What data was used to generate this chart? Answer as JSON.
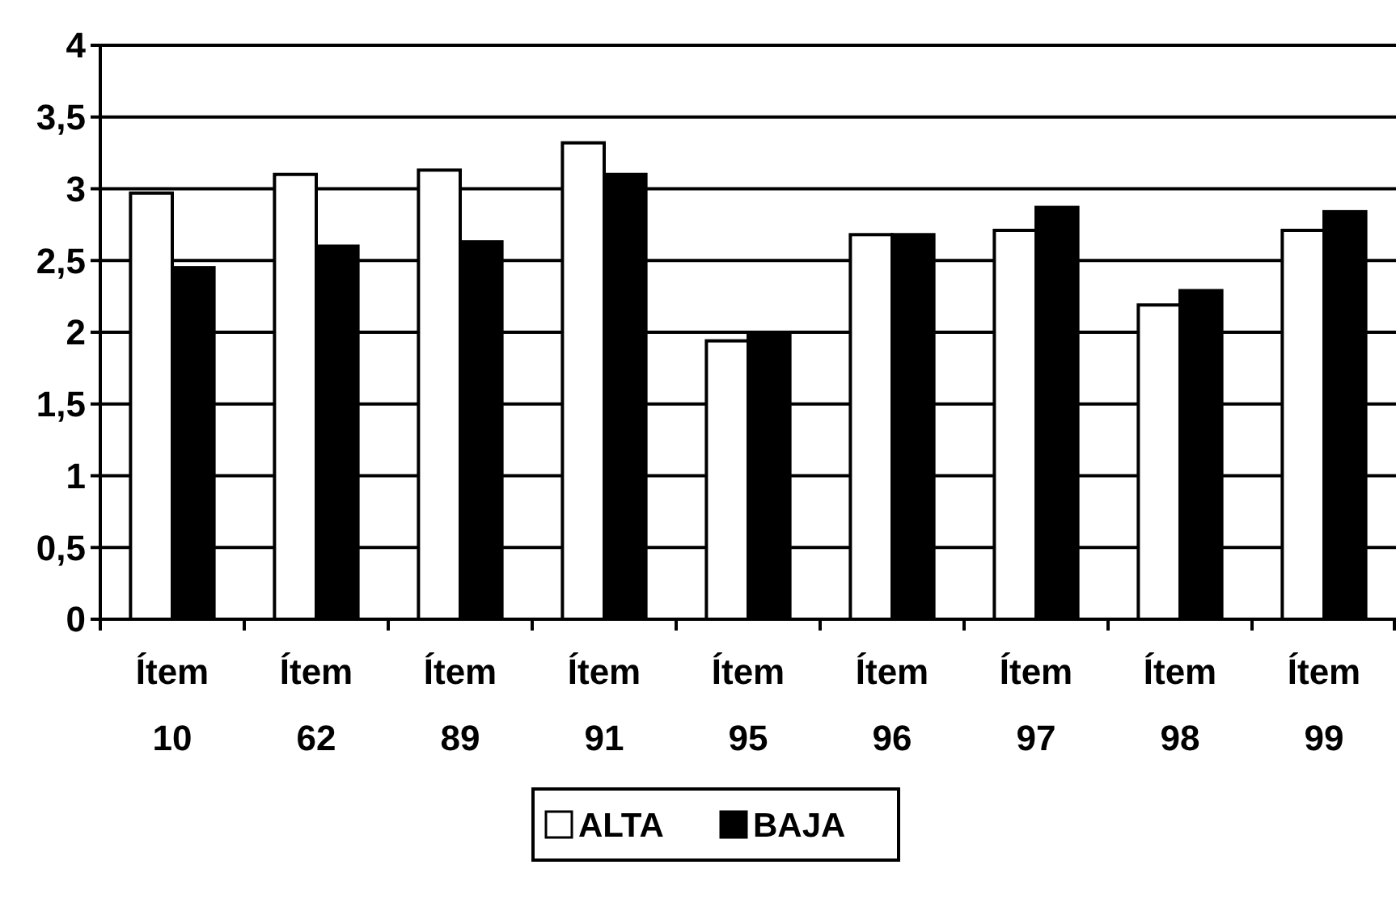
{
  "chart_data": {
    "type": "bar",
    "categories": [
      "Ítem 10",
      "Ítem 62",
      "Ítem 89",
      "Ítem 91",
      "Ítem 95",
      "Ítem 96",
      "Ítem 97",
      "Ítem 98",
      "Ítem 99"
    ],
    "series": [
      {
        "name": "ALTA",
        "color": "#ffffff",
        "values": [
          2.97,
          3.1,
          3.13,
          3.32,
          1.94,
          2.68,
          2.71,
          2.19,
          2.71
        ]
      },
      {
        "name": "BAJA",
        "color": "#000000",
        "values": [
          2.45,
          2.6,
          2.63,
          3.1,
          2.0,
          2.68,
          2.87,
          2.29,
          2.84
        ]
      }
    ],
    "ylim": [
      0,
      4
    ],
    "yticks": [
      0,
      {
        "value": 0.5,
        "label": "0,5"
      },
      1,
      {
        "value": 1.5,
        "label": "1,5"
      },
      2,
      {
        "value": 2.5,
        "label": "2,5"
      },
      3,
      {
        "value": 3.5,
        "label": "3,5"
      },
      4
    ],
    "grid": "y",
    "legend": "bottom"
  }
}
